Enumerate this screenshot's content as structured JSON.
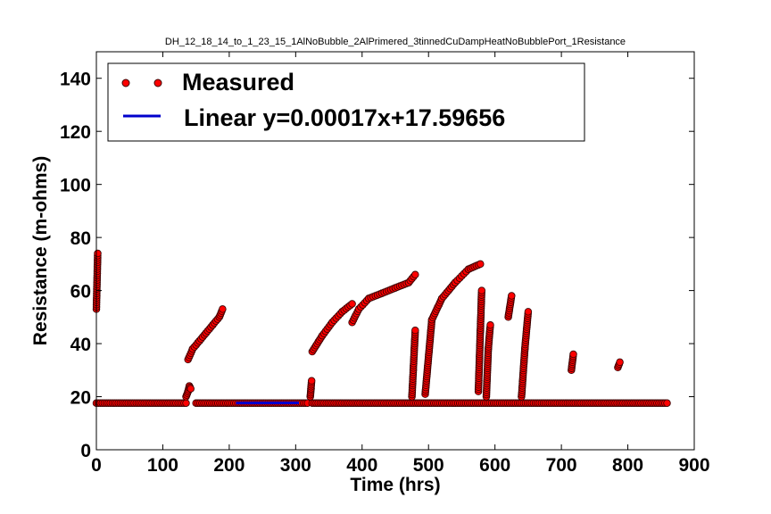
{
  "chart_data": {
    "type": "scatter",
    "title": "DH_12_18_14_to_1_23_15_1AlNoBubble_2AlPrimered_3tinnedCuDampHeatNoBubblePort_1Resistance",
    "xlabel": "Time (hrs)",
    "ylabel": "Resistance (m-ohms)",
    "xlim": [
      0,
      900
    ],
    "ylim": [
      0,
      150
    ],
    "xticks": [
      0,
      100,
      200,
      300,
      400,
      500,
      600,
      700,
      800,
      900
    ],
    "yticks": [
      0,
      20,
      40,
      60,
      80,
      100,
      120,
      140
    ],
    "grid": false,
    "legend_position": "top-left",
    "legend": [
      "Measured",
      "Linear y=0.00017x+17.59656"
    ],
    "colors": {
      "measured_fill": "#ff0000",
      "measured_edge": "#3a0000",
      "fit_line": "#0000cc"
    },
    "series": [
      {
        "name": "Measured",
        "kind": "scatter",
        "baseline": {
          "y": 17.6,
          "ranges": [
            [
              0,
              135
            ],
            [
              150,
              320
            ],
            [
              325,
              860
            ]
          ]
        },
        "curves": [
          {
            "x": [
              0,
              2
            ],
            "y": [
              53,
              74
            ]
          },
          {
            "x": [
              135,
              138,
              140,
              142
            ],
            "y": [
              20,
              22,
              24,
              23
            ]
          },
          {
            "x": [
              138,
              145,
              155,
              165,
              175,
              185,
              190
            ],
            "y": [
              34,
              38,
              41,
              44,
              47,
              50,
              53
            ]
          },
          {
            "x": [
              322,
              323,
              324
            ],
            "y": [
              20,
              23,
              26
            ]
          },
          {
            "x": [
              325,
              340,
              355,
              370,
              385
            ],
            "y": [
              37,
              43,
              48,
              52,
              55
            ]
          },
          {
            "x": [
              385,
              395,
              410,
              430,
              450,
              470,
              480
            ],
            "y": [
              48,
              53,
              57,
              59,
              61,
              63,
              66
            ]
          },
          {
            "x": [
              475,
              477,
              480
            ],
            "y": [
              20,
              30,
              45
            ]
          },
          {
            "x": [
              495,
              505,
              520,
              540,
              560,
              578
            ],
            "y": [
              21,
              49,
              57,
              63,
              68,
              70
            ]
          },
          {
            "x": [
              575,
              578,
              580
            ],
            "y": [
              22,
              45,
              60
            ]
          },
          {
            "x": [
              587,
              590,
              593
            ],
            "y": [
              20,
              38,
              47
            ]
          },
          {
            "x": [
              620,
              625
            ],
            "y": [
              50,
              58
            ]
          },
          {
            "x": [
              640,
              645,
              650
            ],
            "y": [
              20,
              38,
              52
            ]
          },
          {
            "x": [
              715,
              718
            ],
            "y": [
              30,
              36
            ]
          },
          {
            "x": [
              785,
              788
            ],
            "y": [
              31,
              33
            ]
          }
        ]
      },
      {
        "name": "Linear y=0.00017x+17.59656",
        "kind": "line",
        "x": [
          210,
          305
        ],
        "y": [
          17.63,
          17.65
        ]
      }
    ]
  }
}
